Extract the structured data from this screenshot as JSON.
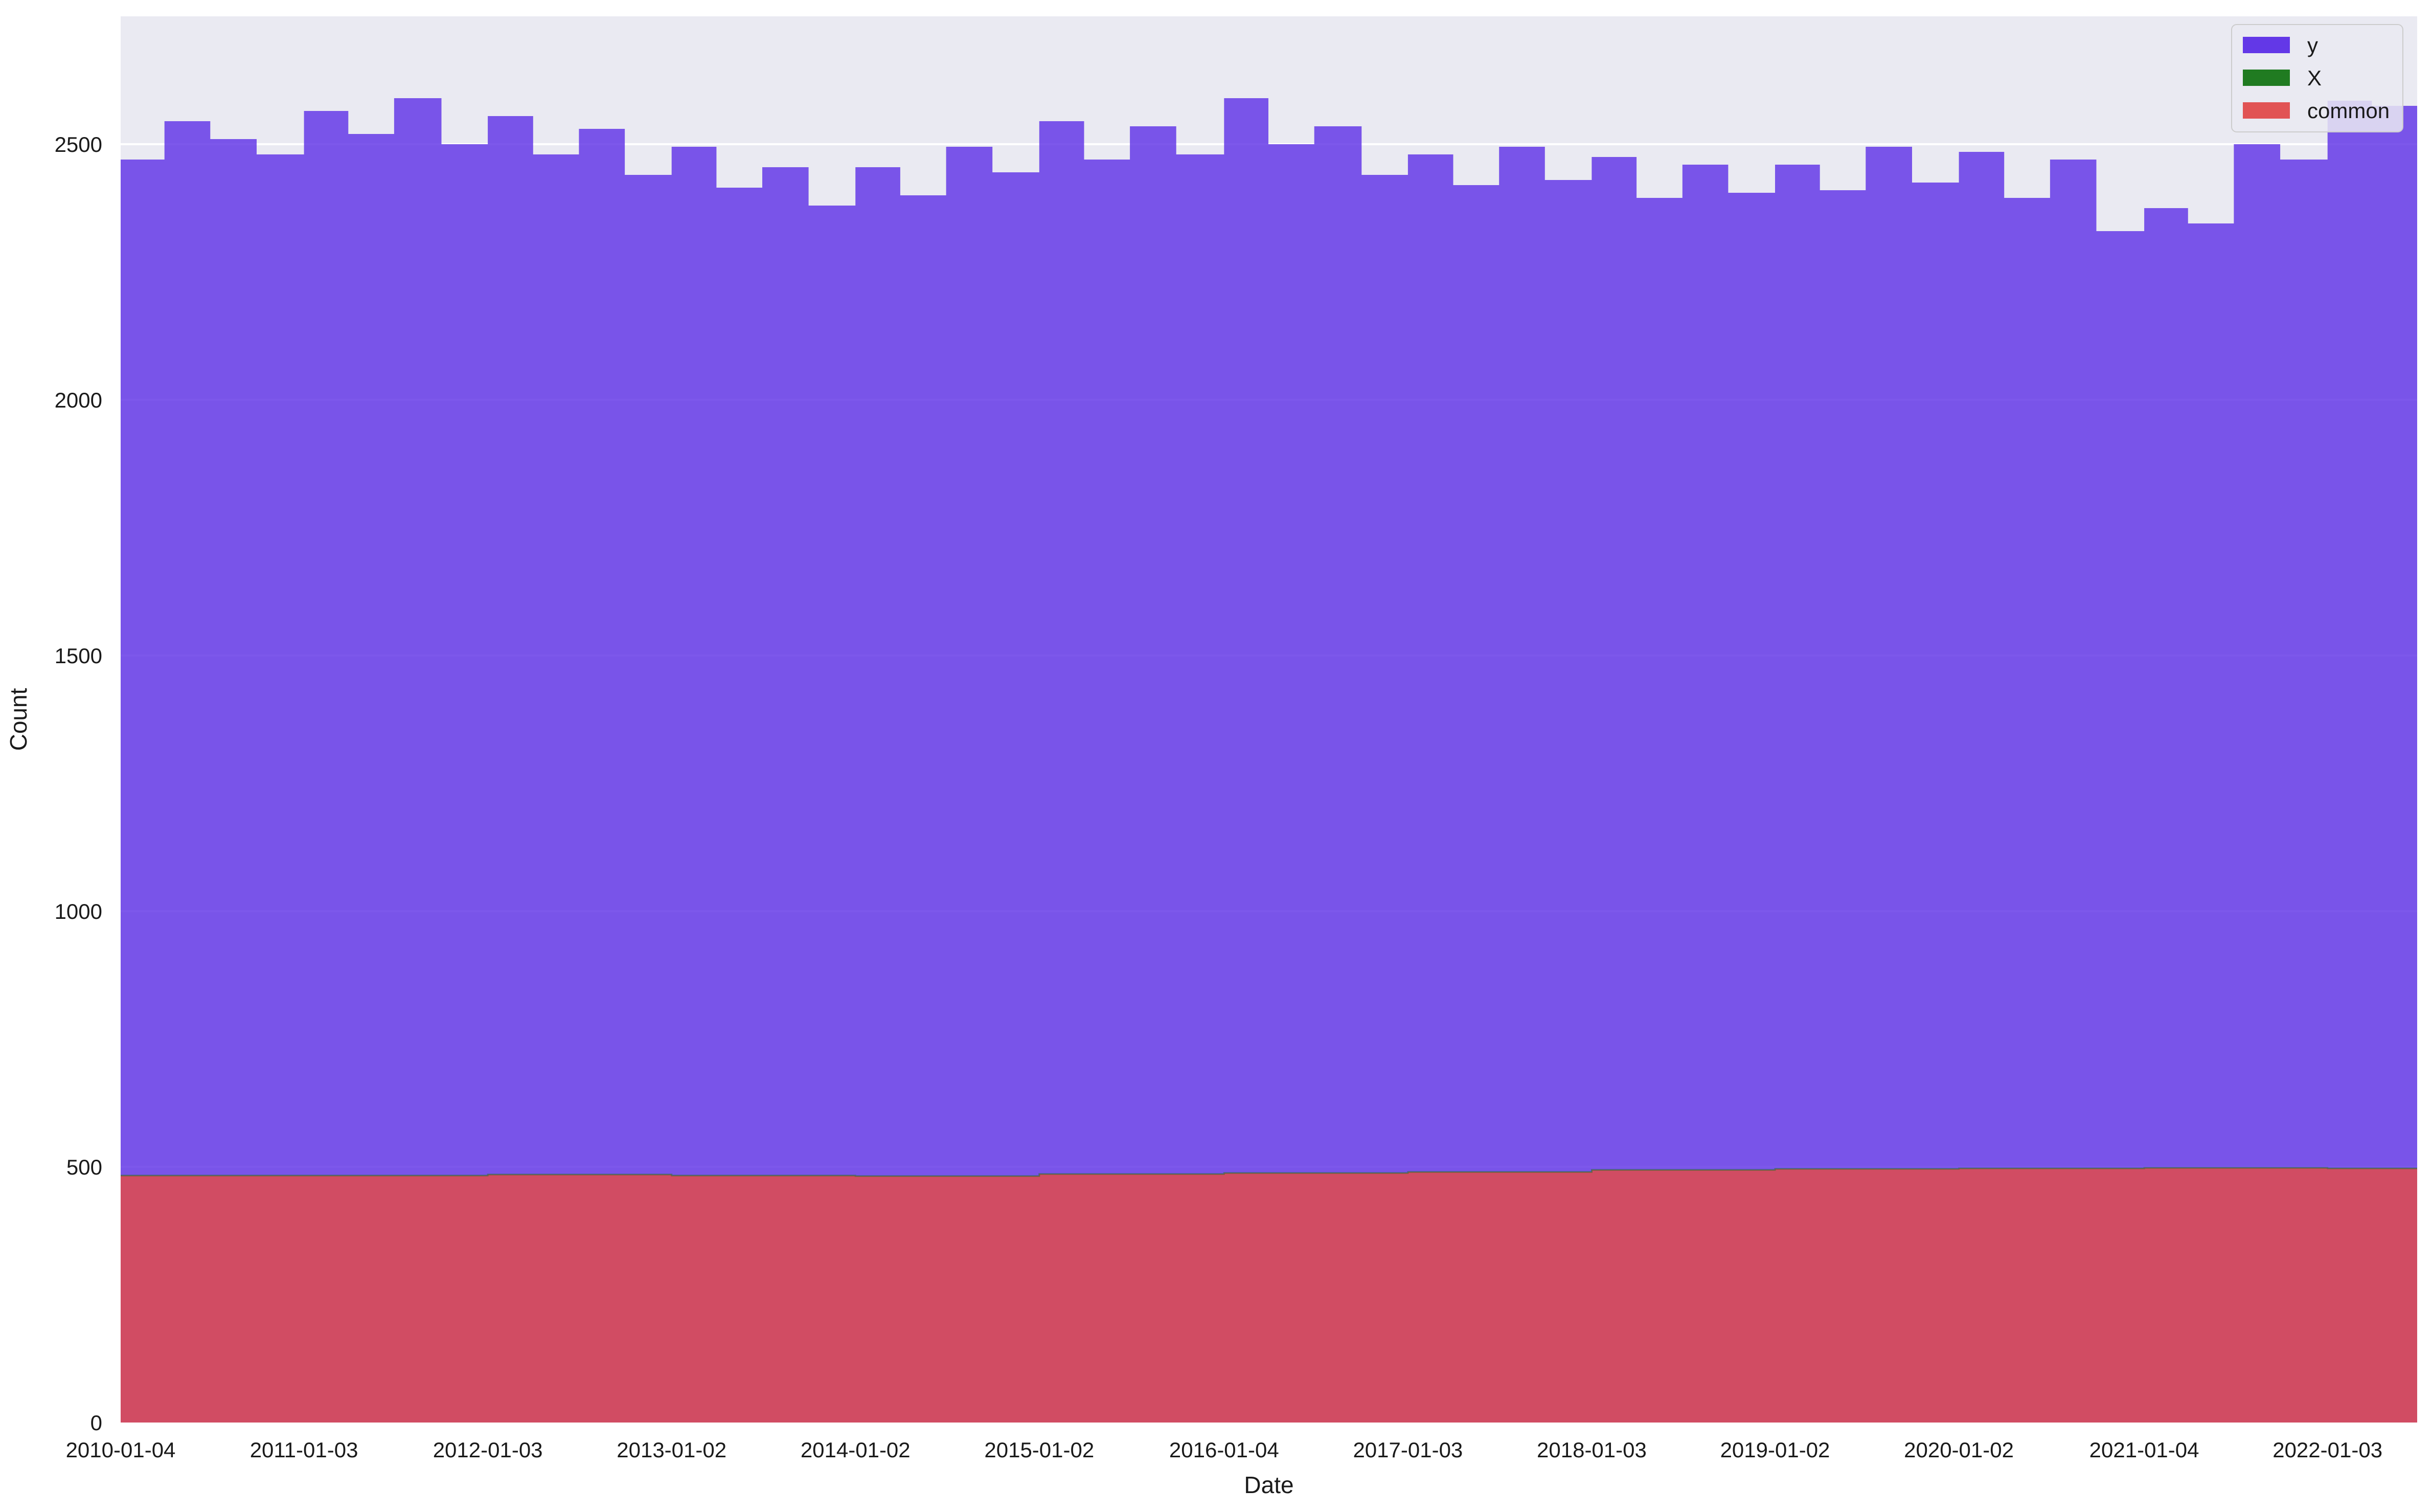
{
  "chart_data": {
    "type": "area",
    "xlabel": "Date",
    "ylabel": "Count",
    "ylim": [
      0,
      2750
    ],
    "xlim": [
      "2010-01-04",
      "2022-06-30"
    ],
    "grid": true,
    "legend_placement": "top-right",
    "background": "#eaeaf2",
    "y_ticks": [
      0,
      500,
      1000,
      1500,
      2000,
      2500
    ],
    "x_ticks": [
      "2010-01-04",
      "2011-01-03",
      "2012-01-03",
      "2013-01-02",
      "2014-01-02",
      "2015-01-02",
      "2016-01-04",
      "2017-01-03",
      "2018-01-03",
      "2019-01-02",
      "2020-01-02",
      "2021-01-04",
      "2022-01-03"
    ],
    "series": [
      {
        "name": "y",
        "color": "#5c2ee6",
        "dates": [
          "2010-01-04",
          "2010-04-01",
          "2010-07-01",
          "2010-10-01",
          "2011-01-03",
          "2011-04-01",
          "2011-07-01",
          "2011-10-03",
          "2012-01-03",
          "2012-04-02",
          "2012-07-02",
          "2012-10-01",
          "2013-01-02",
          "2013-04-01",
          "2013-07-01",
          "2013-10-01",
          "2014-01-02",
          "2014-04-01",
          "2014-07-01",
          "2014-10-01",
          "2015-01-02",
          "2015-04-01",
          "2015-07-01",
          "2015-10-01",
          "2016-01-04",
          "2016-04-01",
          "2016-07-01",
          "2016-10-03",
          "2017-01-03",
          "2017-04-03",
          "2017-07-03",
          "2017-10-02",
          "2018-01-03",
          "2018-04-02",
          "2018-07-02",
          "2018-10-01",
          "2019-01-02",
          "2019-04-01",
          "2019-07-01",
          "2019-10-01",
          "2020-01-02",
          "2020-04-01",
          "2020-07-01",
          "2020-10-01",
          "2021-01-04",
          "2021-04-01",
          "2021-07-01",
          "2021-10-01",
          "2022-01-03",
          "2022-04-01",
          "2022-06-30"
        ],
        "values": [
          2470,
          2545,
          2510,
          2480,
          2565,
          2520,
          2590,
          2500,
          2555,
          2480,
          2530,
          2440,
          2495,
          2415,
          2455,
          2380,
          2455,
          2400,
          2495,
          2445,
          2545,
          2470,
          2535,
          2480,
          2590,
          2500,
          2535,
          2440,
          2480,
          2420,
          2495,
          2430,
          2475,
          2395,
          2460,
          2405,
          2460,
          2410,
          2495,
          2425,
          2485,
          2395,
          2470,
          2330,
          2375,
          2345,
          2500,
          2470,
          2585,
          2575,
          2610
        ]
      },
      {
        "name": "X",
        "color": "#157515",
        "dates": [
          "2010-01-04",
          "2022-06-30"
        ],
        "values": [
          0,
          0
        ]
      },
      {
        "name": "common",
        "color": "#e04b4b",
        "dates": [
          "2010-01-04",
          "2011-01-03",
          "2012-01-03",
          "2013-01-02",
          "2014-01-02",
          "2015-01-02",
          "2016-01-04",
          "2017-01-03",
          "2018-01-03",
          "2019-01-02",
          "2020-01-02",
          "2021-01-04",
          "2022-01-03",
          "2022-06-30"
        ],
        "values": [
          483,
          483,
          485,
          483,
          482,
          486,
          488,
          490,
          494,
          496,
          497,
          498,
          497,
          497
        ]
      }
    ]
  }
}
